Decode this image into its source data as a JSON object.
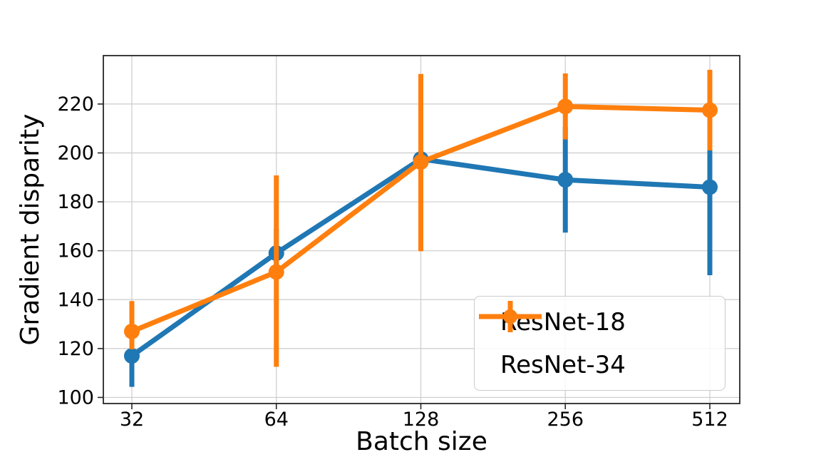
{
  "chart_data": {
    "type": "line",
    "title": "",
    "xlabel": "Batch size",
    "ylabel": "Gradient disparity",
    "x_tick_labels": [
      "32",
      "64",
      "128",
      "256",
      "512"
    ],
    "y_ticks": [
      100,
      120,
      140,
      160,
      180,
      200,
      220
    ],
    "ylim": [
      97.5,
      239.8
    ],
    "grid": true,
    "legend_position": "lower right",
    "series": [
      {
        "name": "ResNet-18",
        "color": "#1f77b4",
        "values": [
          117,
          159,
          197.5,
          189,
          186
        ],
        "err_lo": [
          104.3,
          149,
          187.5,
          167.4,
          150
        ],
        "err_hi": [
          129.7,
          169,
          207.5,
          210.6,
          222
        ]
      },
      {
        "name": "ResNet-34",
        "color": "#ff7f0e",
        "values": [
          127,
          151.3,
          196.3,
          219,
          217.5
        ],
        "err_lo": [
          119.7,
          112.5,
          159.8,
          205.5,
          201
        ],
        "err_hi": [
          139.4,
          190.8,
          232.3,
          232.5,
          234
        ]
      }
    ],
    "style": {
      "grid_color": "#cccccc",
      "spine_color": "#262626",
      "tick_label_color": "#000000"
    }
  }
}
